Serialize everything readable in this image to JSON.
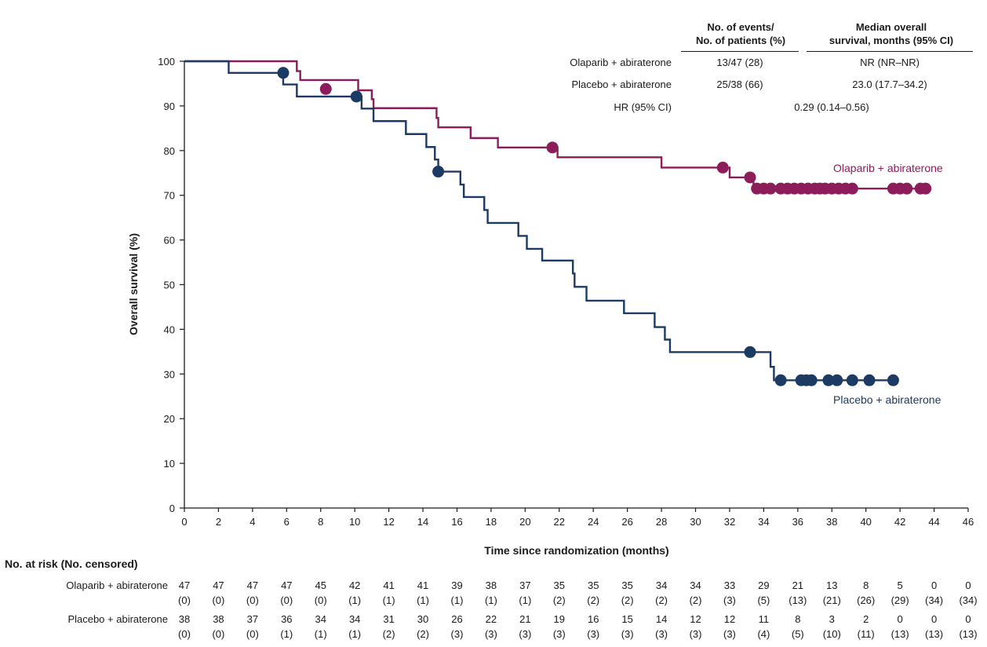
{
  "chart_data": {
    "type": "line",
    "subtype": "kaplan-meier",
    "xlabel": "Time since randomization (months)",
    "ylabel": "Overall survival (%)",
    "xlim": [
      0,
      46
    ],
    "ylim": [
      0,
      100
    ],
    "xticks": [
      0,
      2,
      4,
      6,
      8,
      10,
      12,
      14,
      16,
      18,
      20,
      22,
      24,
      26,
      28,
      30,
      32,
      34,
      36,
      38,
      40,
      42,
      44,
      46
    ],
    "yticks": [
      0,
      10,
      20,
      30,
      40,
      50,
      60,
      70,
      80,
      90,
      100
    ],
    "colors": {
      "olaparib": "#8c1d5a",
      "placebo": "#1b3a64",
      "axis": "#1a1a1a"
    },
    "series": [
      {
        "key": "olaparib",
        "name": "Olaparib + abiraterone",
        "label": "Olaparib + abiraterone",
        "steps": [
          [
            0,
            100
          ],
          [
            6.6,
            100
          ],
          [
            6.6,
            97.8
          ],
          [
            6.8,
            97.8
          ],
          [
            6.8,
            95.8
          ],
          [
            10.2,
            95.8
          ],
          [
            10.2,
            93.5
          ],
          [
            11.0,
            93.5
          ],
          [
            11.0,
            91.5
          ],
          [
            11.1,
            91.5
          ],
          [
            11.1,
            89.5
          ],
          [
            14.8,
            89.5
          ],
          [
            14.8,
            87.3
          ],
          [
            14.9,
            87.3
          ],
          [
            14.9,
            85.2
          ],
          [
            16.8,
            85.2
          ],
          [
            16.8,
            82.8
          ],
          [
            18.4,
            82.8
          ],
          [
            18.4,
            80.7
          ],
          [
            21.9,
            80.7
          ],
          [
            21.9,
            78.5
          ],
          [
            28.0,
            78.5
          ],
          [
            28.0,
            76.2
          ],
          [
            32.0,
            76.2
          ],
          [
            32.0,
            74.0
          ],
          [
            33.4,
            74.0
          ],
          [
            33.4,
            71.5
          ],
          [
            43.5,
            71.5
          ]
        ],
        "censored": [
          [
            8.3,
            93.8
          ],
          [
            21.6,
            80.7
          ],
          [
            31.6,
            76.2
          ],
          [
            33.2,
            74.0
          ],
          [
            33.6,
            71.5
          ],
          [
            34.0,
            71.5
          ],
          [
            34.4,
            71.5
          ],
          [
            35.0,
            71.5
          ],
          [
            35.4,
            71.5
          ],
          [
            35.8,
            71.5
          ],
          [
            36.2,
            71.5
          ],
          [
            36.6,
            71.5
          ],
          [
            37.0,
            71.5
          ],
          [
            37.3,
            71.5
          ],
          [
            37.6,
            71.5
          ],
          [
            38.0,
            71.5
          ],
          [
            38.4,
            71.5
          ],
          [
            38.8,
            71.5
          ],
          [
            39.2,
            71.5
          ],
          [
            41.6,
            71.5
          ],
          [
            42.0,
            71.5
          ],
          [
            42.4,
            71.5
          ],
          [
            43.2,
            71.5
          ],
          [
            43.5,
            71.5
          ]
        ]
      },
      {
        "key": "placebo",
        "name": "Placebo + abiraterone",
        "label": "Placebo + abiraterone",
        "steps": [
          [
            0,
            100
          ],
          [
            2.6,
            100
          ],
          [
            2.6,
            97.4
          ],
          [
            5.8,
            97.4
          ],
          [
            5.8,
            94.8
          ],
          [
            6.6,
            94.8
          ],
          [
            6.6,
            92.1
          ],
          [
            10.4,
            92.1
          ],
          [
            10.4,
            89.4
          ],
          [
            11.1,
            89.4
          ],
          [
            11.1,
            86.6
          ],
          [
            13.0,
            86.6
          ],
          [
            13.0,
            83.7
          ],
          [
            14.2,
            83.7
          ],
          [
            14.2,
            80.8
          ],
          [
            14.7,
            80.8
          ],
          [
            14.7,
            78.0
          ],
          [
            14.9,
            78.0
          ],
          [
            14.9,
            75.3
          ],
          [
            16.2,
            75.3
          ],
          [
            16.2,
            72.4
          ],
          [
            16.4,
            72.4
          ],
          [
            16.4,
            69.6
          ],
          [
            17.6,
            69.6
          ],
          [
            17.6,
            66.7
          ],
          [
            17.8,
            66.7
          ],
          [
            17.8,
            63.8
          ],
          [
            19.6,
            63.8
          ],
          [
            19.6,
            60.9
          ],
          [
            20.1,
            60.9
          ],
          [
            20.1,
            58.0
          ],
          [
            21.0,
            58.0
          ],
          [
            21.0,
            55.4
          ],
          [
            22.8,
            55.4
          ],
          [
            22.8,
            52.5
          ],
          [
            22.9,
            52.5
          ],
          [
            22.9,
            49.5
          ],
          [
            23.6,
            49.5
          ],
          [
            23.6,
            46.4
          ],
          [
            25.8,
            46.4
          ],
          [
            25.8,
            43.6
          ],
          [
            27.6,
            43.6
          ],
          [
            27.6,
            40.5
          ],
          [
            28.2,
            40.5
          ],
          [
            28.2,
            37.7
          ],
          [
            28.5,
            37.7
          ],
          [
            28.5,
            34.9
          ],
          [
            34.4,
            34.9
          ],
          [
            34.4,
            31.6
          ],
          [
            34.6,
            31.6
          ],
          [
            34.6,
            28.6
          ],
          [
            41.6,
            28.6
          ]
        ],
        "censored": [
          [
            5.8,
            97.4
          ],
          [
            10.1,
            92.1
          ],
          [
            14.9,
            75.3
          ],
          [
            33.2,
            34.9
          ],
          [
            35.0,
            28.6
          ],
          [
            36.2,
            28.6
          ],
          [
            36.5,
            28.6
          ],
          [
            36.8,
            28.6
          ],
          [
            37.8,
            28.6
          ],
          [
            38.3,
            28.6
          ],
          [
            39.2,
            28.6
          ],
          [
            40.2,
            28.6
          ],
          [
            41.6,
            28.6
          ]
        ]
      }
    ],
    "summary_table": {
      "col1_header": [
        "No. of events/",
        "No. of patients (%)"
      ],
      "col2_header": [
        "Median overall",
        "survival, months (95% CI)"
      ],
      "rows": [
        {
          "label": "Olaparib + abiraterone",
          "events": "13/47 (28)",
          "median": "NR (NR–NR)"
        },
        {
          "label": "Placebo + abiraterone",
          "events": "25/38 (66)",
          "median": "23.0 (17.7–34.2)"
        }
      ],
      "hr_label": "HR (95% CI)",
      "hr_value": "0.29 (0.14–0.56)"
    },
    "risk_table": {
      "title": "No. at risk (No. censored)",
      "rows": [
        {
          "label": "Olaparib + abiraterone",
          "at_risk": [
            "47",
            "47",
            "47",
            "47",
            "45",
            "42",
            "41",
            "41",
            "39",
            "38",
            "37",
            "35",
            "35",
            "35",
            "34",
            "34",
            "33",
            "29",
            "21",
            "13",
            "8",
            "5",
            "0",
            "0"
          ],
          "censored": [
            "(0)",
            "(0)",
            "(0)",
            "(0)",
            "(0)",
            "(1)",
            "(1)",
            "(1)",
            "(1)",
            "(1)",
            "(1)",
            "(2)",
            "(2)",
            "(2)",
            "(2)",
            "(2)",
            "(3)",
            "(5)",
            "(13)",
            "(21)",
            "(26)",
            "(29)",
            "(34)",
            "(34)"
          ]
        },
        {
          "label": "Placebo + abiraterone",
          "at_risk": [
            "38",
            "38",
            "37",
            "36",
            "34",
            "34",
            "31",
            "30",
            "26",
            "22",
            "21",
            "19",
            "16",
            "15",
            "14",
            "12",
            "12",
            "11",
            "8",
            "3",
            "2",
            "0",
            "0",
            "0"
          ],
          "censored": [
            "(0)",
            "(0)",
            "(0)",
            "(1)",
            "(1)",
            "(1)",
            "(2)",
            "(2)",
            "(3)",
            "(3)",
            "(3)",
            "(3)",
            "(3)",
            "(3)",
            "(3)",
            "(3)",
            "(3)",
            "(4)",
            "(5)",
            "(10)",
            "(11)",
            "(13)",
            "(13)",
            "(13)"
          ]
        }
      ]
    }
  }
}
